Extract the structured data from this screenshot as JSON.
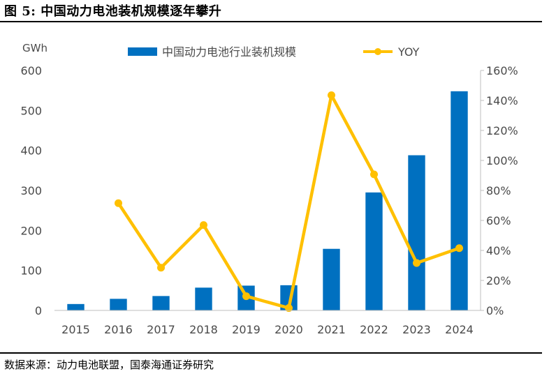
{
  "figure": {
    "title": "图 5:  中国动力电池装机规模逐年攀升",
    "source": "数据来源：动力电池联盟，国泰海通证券研究"
  },
  "chart_data": {
    "type": "bar",
    "categories": [
      "2015",
      "2016",
      "2017",
      "2018",
      "2019",
      "2020",
      "2021",
      "2022",
      "2023",
      "2024"
    ],
    "series": [
      {
        "name": "中国动力电池行业装机规模",
        "type": "bar",
        "axis": "left",
        "color": "#0070C0",
        "values": [
          16,
          29,
          36,
          57,
          62,
          63,
          154,
          295,
          388,
          548
        ]
      },
      {
        "name": "YOY",
        "type": "line",
        "axis": "right",
        "color": "#FFC000",
        "values": [
          null,
          71.5,
          28.5,
          56.9,
          9.5,
          1.6,
          143.5,
          90.7,
          31.6,
          41.5
        ]
      }
    ],
    "left_axis": {
      "unit": "GWh",
      "min": 0,
      "max": 600,
      "ticks": [
        "0",
        "100",
        "200",
        "300",
        "400",
        "500",
        "600"
      ]
    },
    "right_axis": {
      "min": 0,
      "max": 160,
      "ticks": [
        "0%",
        "20%",
        "40%",
        "60%",
        "80%",
        "100%",
        "120%",
        "140%",
        "160%"
      ]
    },
    "legend": "top-center",
    "grid": false
  }
}
